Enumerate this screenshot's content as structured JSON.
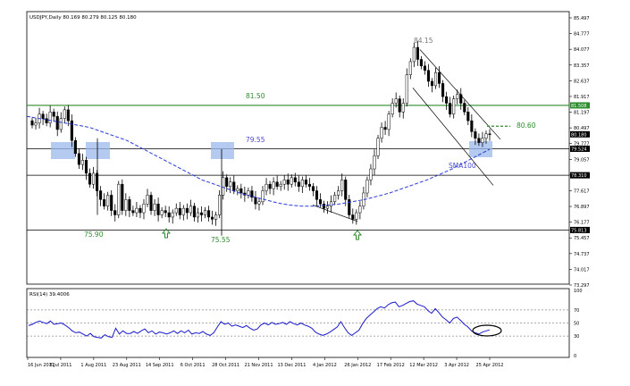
{
  "chart_data": [
    {
      "type": "candlestick",
      "symbol_label": "USDJPY,Daily  80.169 80.279 80.125 80.180",
      "y_ticks": [
        "85.497",
        "84.777",
        "84.077",
        "83.357",
        "82.637",
        "81.917",
        "81.197",
        "80.497",
        "79.777",
        "79.057",
        "78.337",
        "77.617",
        "76.897",
        "76.177",
        "75.457",
        "74.737",
        "74.017",
        "73.297"
      ],
      "ylim": [
        73.297,
        85.497
      ],
      "x_ticks": [
        "16 Jun 2011",
        "8 Jul 2011",
        "1 Aug 2011",
        "23 Aug 2011",
        "14 Sep 2011",
        "6 Oct 2011",
        "28 Oct 2011",
        "21 Nov 2011",
        "13 Dec 2011",
        "4 Jan 2012",
        "26 Jan 2012",
        "17 Feb 2012",
        "12 Mar 2012",
        "3 Apr 2012",
        "25 Apr 2012"
      ],
      "price_tags": [
        {
          "label": "81.508",
          "color": "#2e8b2e"
        },
        {
          "label": "80.180",
          "color": "#000000"
        },
        {
          "label": "79.524",
          "color": "#000000"
        },
        {
          "label": "78.310",
          "color": "#000000"
        },
        {
          "label": "75.813",
          "color": "#000000"
        }
      ],
      "horizontal_levels": [
        {
          "value": 81.5,
          "color": "#2e8b2e"
        },
        {
          "value": 79.52,
          "color": "#000000"
        },
        {
          "value": 78.31,
          "color": "#000000"
        },
        {
          "value": 75.81,
          "color": "#000000"
        }
      ],
      "annotations": [
        {
          "text": "84.15",
          "color": "#777777"
        },
        {
          "text": "81.50",
          "color": "#2e8b2e"
        },
        {
          "text": "79.55",
          "color": "#4a4ad0"
        },
        {
          "text": "75.90",
          "color": "#2e8b2e"
        },
        {
          "text": "75.55",
          "color": "#2e8b2e"
        },
        {
          "text": "80.60",
          "color": "#2e8b2e"
        },
        {
          "text": "SMA100",
          "color": "#4a4ad0"
        }
      ],
      "close_series": [
        80.6,
        80.7,
        81.1,
        80.9,
        80.7,
        81.2,
        81.0,
        80.4,
        80.9,
        81.3,
        80.8,
        79.9,
        79.3,
        78.8,
        79.0,
        78.4,
        77.9,
        78.4,
        77.6,
        77.2,
        76.9,
        77.4,
        76.7,
        76.5,
        77.9,
        76.7,
        77.2,
        76.7,
        76.6,
        76.8,
        76.6,
        77.0,
        77.4,
        76.7,
        77.0,
        76.5,
        76.7,
        76.6,
        76.4,
        76.6,
        76.8,
        76.5,
        76.8,
        76.6,
        76.9,
        76.4,
        76.6,
        76.5,
        76.7,
        76.4,
        76.3,
        76.5,
        77.4,
        78.2,
        77.8,
        78.0,
        77.6,
        77.7,
        77.5,
        77.4,
        77.6,
        77.3,
        77.0,
        77.1,
        77.6,
        77.9,
        77.7,
        78.0,
        77.8,
        77.9,
        78.1,
        77.9,
        78.2,
        78.0,
        77.8,
        78.1,
        77.9,
        77.8,
        77.6,
        77.2,
        77.0,
        76.8,
        76.9,
        77.1,
        77.4,
        77.6,
        78.1,
        77.2,
        76.5,
        76.3,
        76.6,
        76.9,
        77.5,
        78.1,
        78.6,
        79.2,
        80.0,
        80.5,
        80.4,
        81.1,
        81.6,
        81.8,
        81.2,
        81.6,
        82.9,
        83.5,
        84.15,
        83.6,
        83.3,
        83.1,
        82.6,
        82.4,
        83.0,
        82.5,
        81.9,
        81.6,
        81.1,
        81.8,
        82.0,
        81.6,
        81.2,
        80.8,
        80.3,
        80.0,
        79.8,
        80.0,
        80.2,
        80.18
      ],
      "sma100_series": [
        81.0,
        80.9,
        80.8,
        80.7,
        80.6,
        80.5,
        80.3,
        80.1,
        79.9,
        79.6,
        79.3,
        79.0,
        78.7,
        78.4,
        78.1,
        77.9,
        77.7,
        77.5,
        77.35,
        77.2,
        77.05,
        76.95,
        76.9,
        76.9,
        76.95,
        77.0,
        77.1,
        77.2,
        77.35,
        77.5,
        77.7,
        77.9,
        78.1,
        78.35,
        78.6,
        78.9,
        79.2,
        79.5
      ],
      "rsi": {
        "label": "RSI(14) 39.4006",
        "ylim": [
          0,
          100
        ],
        "levels": [
          30,
          50,
          70
        ],
        "y_ticks": [
          "100",
          "70",
          "50",
          "30",
          "0"
        ],
        "values": [
          46,
          48,
          51,
          53,
          51,
          49,
          53,
          48,
          49,
          50,
          47,
          43,
          38,
          35,
          36,
          33,
          30,
          34,
          29,
          28,
          27,
          32,
          29,
          28,
          42,
          33,
          38,
          34,
          34,
          37,
          34,
          38,
          41,
          35,
          38,
          33,
          36,
          35,
          33,
          35,
          38,
          34,
          38,
          35,
          39,
          33,
          35,
          34,
          37,
          33,
          31,
          35,
          44,
          52,
          48,
          50,
          45,
          47,
          45,
          43,
          46,
          42,
          39,
          41,
          47,
          50,
          47,
          51,
          48,
          49,
          51,
          48,
          52,
          49,
          47,
          50,
          47,
          45,
          42,
          36,
          33,
          31,
          33,
          36,
          40,
          44,
          52,
          43,
          35,
          31,
          35,
          39,
          49,
          57,
          62,
          67,
          72,
          75,
          73,
          78,
          81,
          82,
          75,
          77,
          80,
          83,
          84,
          79,
          77,
          75,
          69,
          65,
          72,
          66,
          59,
          55,
          50,
          57,
          59,
          54,
          48,
          44,
          38,
          35,
          33,
          36,
          38,
          39.4
        ]
      }
    }
  ]
}
